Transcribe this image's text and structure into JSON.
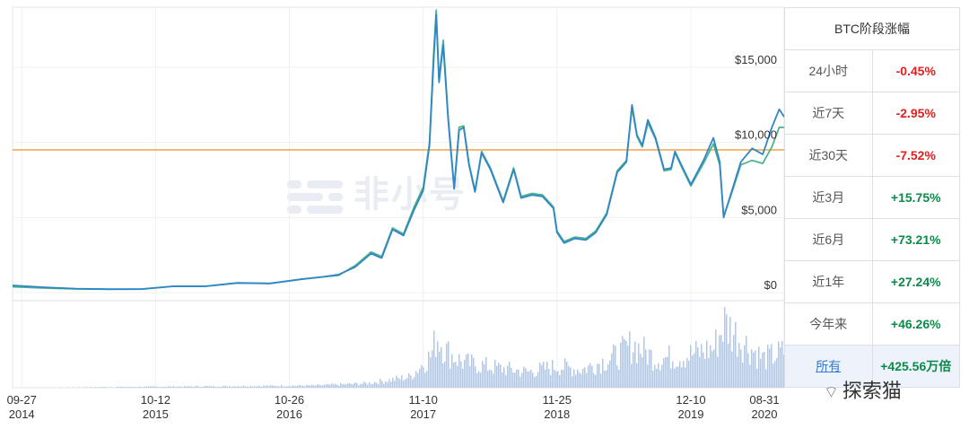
{
  "watermark_logo": "非小号",
  "footer_watermark": "探索猫",
  "chart_data": {
    "type": "line",
    "x_ticks": [
      {
        "date": "2014-09-27",
        "month_day": "09-27",
        "year": "2014"
      },
      {
        "date": "2015-10-12",
        "month_day": "10-12",
        "year": "2015"
      },
      {
        "date": "2016-10-26",
        "month_day": "10-26",
        "year": "2016"
      },
      {
        "date": "2017-11-10",
        "month_day": "11-10",
        "year": "2017"
      },
      {
        "date": "2018-11-25",
        "month_day": "11-25",
        "year": "2018"
      },
      {
        "date": "2019-12-10",
        "month_day": "12-10",
        "year": "2019"
      },
      {
        "date": "2020-08-31",
        "month_day": "08-31",
        "year": "2020"
      }
    ],
    "y_ticks": [
      {
        "value": 0,
        "label": "$0"
      },
      {
        "value": 5000,
        "label": "$5,000"
      },
      {
        "value": 10000,
        "label": "$10,000"
      },
      {
        "value": 15000,
        "label": "$15,000"
      }
    ],
    "ylim": [
      0,
      19000
    ],
    "reference_line": {
      "value": 9500,
      "color": "#f5a04a"
    },
    "series": [
      {
        "color": "#2f86c8",
        "points": [
          [
            "2014-09-01",
            480
          ],
          [
            "2014-12-01",
            350
          ],
          [
            "2015-03-01",
            260
          ],
          [
            "2015-06-01",
            230
          ],
          [
            "2015-09-01",
            235
          ],
          [
            "2015-12-01",
            420
          ],
          [
            "2016-03-01",
            420
          ],
          [
            "2016-06-01",
            640
          ],
          [
            "2016-09-01",
            610
          ],
          [
            "2016-12-01",
            890
          ],
          [
            "2017-02-01",
            1050
          ],
          [
            "2017-03-15",
            1200
          ],
          [
            "2017-05-01",
            1700
          ],
          [
            "2017-06-15",
            2600
          ],
          [
            "2017-07-15",
            2300
          ],
          [
            "2017-08-15",
            4200
          ],
          [
            "2017-09-15",
            3800
          ],
          [
            "2017-10-15",
            5500
          ],
          [
            "2017-11-10",
            6800
          ],
          [
            "2017-11-28",
            9800
          ],
          [
            "2017-12-10",
            15500
          ],
          [
            "2017-12-17",
            18500
          ],
          [
            "2017-12-25",
            14000
          ],
          [
            "2018-01-06",
            16500
          ],
          [
            "2018-01-20",
            11500
          ],
          [
            "2018-02-06",
            6900
          ],
          [
            "2018-02-20",
            10800
          ],
          [
            "2018-03-05",
            11000
          ],
          [
            "2018-03-20",
            8500
          ],
          [
            "2018-04-06",
            6700
          ],
          [
            "2018-04-25",
            9300
          ],
          [
            "2018-05-20",
            8200
          ],
          [
            "2018-06-25",
            6000
          ],
          [
            "2018-07-25",
            8200
          ],
          [
            "2018-08-15",
            6300
          ],
          [
            "2018-09-15",
            6500
          ],
          [
            "2018-10-15",
            6400
          ],
          [
            "2018-11-15",
            5600
          ],
          [
            "2018-11-25",
            4000
          ],
          [
            "2018-12-15",
            3300
          ],
          [
            "2019-01-15",
            3600
          ],
          [
            "2019-02-15",
            3500
          ],
          [
            "2019-03-15",
            4000
          ],
          [
            "2019-04-15",
            5200
          ],
          [
            "2019-05-15",
            8000
          ],
          [
            "2019-06-10",
            8700
          ],
          [
            "2019-06-26",
            12500
          ],
          [
            "2019-07-10",
            10500
          ],
          [
            "2019-07-25",
            9800
          ],
          [
            "2019-08-10",
            11500
          ],
          [
            "2019-09-01",
            10300
          ],
          [
            "2019-09-25",
            8200
          ],
          [
            "2019-10-15",
            8300
          ],
          [
            "2019-10-26",
            9400
          ],
          [
            "2019-11-15",
            8400
          ],
          [
            "2019-12-10",
            7200
          ],
          [
            "2020-01-15",
            8800
          ],
          [
            "2020-02-12",
            10300
          ],
          [
            "2020-03-01",
            8700
          ],
          [
            "2020-03-12",
            5000
          ],
          [
            "2020-04-01",
            6500
          ],
          [
            "2020-04-30",
            8700
          ],
          [
            "2020-06-01",
            9600
          ],
          [
            "2020-07-01",
            9200
          ],
          [
            "2020-07-27",
            11000
          ],
          [
            "2020-08-17",
            12200
          ],
          [
            "2020-08-31",
            11700
          ]
        ]
      },
      {
        "color": "#4fb38a",
        "points": [
          [
            "2014-09-01",
            380
          ],
          [
            "2014-12-01",
            300
          ],
          [
            "2015-03-01",
            240
          ],
          [
            "2015-06-01",
            220
          ],
          [
            "2015-09-01",
            230
          ],
          [
            "2015-12-01",
            420
          ],
          [
            "2016-03-01",
            420
          ],
          [
            "2016-06-01",
            650
          ],
          [
            "2016-09-01",
            610
          ],
          [
            "2016-12-01",
            900
          ],
          [
            "2017-02-01",
            1050
          ],
          [
            "2017-03-15",
            1150
          ],
          [
            "2017-05-01",
            1800
          ],
          [
            "2017-06-15",
            2700
          ],
          [
            "2017-07-15",
            2400
          ],
          [
            "2017-08-15",
            4300
          ],
          [
            "2017-09-15",
            3900
          ],
          [
            "2017-10-15",
            5700
          ],
          [
            "2017-11-10",
            7000
          ],
          [
            "2017-11-28",
            10000
          ],
          [
            "2017-12-10",
            16000
          ],
          [
            "2017-12-17",
            18800
          ],
          [
            "2017-12-25",
            14200
          ],
          [
            "2018-01-06",
            16800
          ],
          [
            "2018-01-20",
            11700
          ],
          [
            "2018-02-06",
            7000
          ],
          [
            "2018-02-20",
            11000
          ],
          [
            "2018-03-05",
            11100
          ],
          [
            "2018-03-20",
            8600
          ],
          [
            "2018-04-06",
            6800
          ],
          [
            "2018-04-25",
            9400
          ],
          [
            "2018-05-20",
            8300
          ],
          [
            "2018-06-25",
            6100
          ],
          [
            "2018-07-25",
            8300
          ],
          [
            "2018-08-15",
            6400
          ],
          [
            "2018-09-15",
            6600
          ],
          [
            "2018-10-15",
            6500
          ],
          [
            "2018-11-15",
            5700
          ],
          [
            "2018-11-25",
            4100
          ],
          [
            "2018-12-15",
            3400
          ],
          [
            "2019-01-15",
            3700
          ],
          [
            "2019-02-15",
            3600
          ],
          [
            "2019-03-15",
            4100
          ],
          [
            "2019-04-15",
            5300
          ],
          [
            "2019-05-15",
            8100
          ],
          [
            "2019-06-10",
            8800
          ],
          [
            "2019-06-26",
            12300
          ],
          [
            "2019-07-10",
            10400
          ],
          [
            "2019-07-25",
            9700
          ],
          [
            "2019-08-10",
            11300
          ],
          [
            "2019-09-01",
            10200
          ],
          [
            "2019-09-25",
            8100
          ],
          [
            "2019-10-15",
            8200
          ],
          [
            "2019-10-26",
            9300
          ],
          [
            "2019-11-15",
            8300
          ],
          [
            "2019-12-10",
            7100
          ],
          [
            "2020-01-15",
            8600
          ],
          [
            "2020-02-12",
            9900
          ],
          [
            "2020-03-01",
            8500
          ],
          [
            "2020-03-12",
            5100
          ],
          [
            "2020-04-01",
            6400
          ],
          [
            "2020-04-30",
            8500
          ],
          [
            "2020-06-01",
            8800
          ],
          [
            "2020-07-01",
            8600
          ],
          [
            "2020-07-27",
            9700
          ],
          [
            "2020-08-17",
            11000
          ],
          [
            "2020-08-31",
            11000
          ]
        ]
      }
    ],
    "volume": {
      "color": "#a9c9f5",
      "points": [
        [
          "2014-09-01",
          0.0
        ],
        [
          "2017-01-01",
          0.03
        ],
        [
          "2017-06-01",
          0.06
        ],
        [
          "2017-10-01",
          0.15
        ],
        [
          "2017-12-01",
          0.45
        ],
        [
          "2017-12-17",
          0.72
        ],
        [
          "2018-01-15",
          0.5
        ],
        [
          "2018-03-01",
          0.35
        ],
        [
          "2018-06-01",
          0.28
        ],
        [
          "2018-09-01",
          0.22
        ],
        [
          "2018-11-25",
          0.3
        ],
        [
          "2019-02-01",
          0.25
        ],
        [
          "2019-05-15",
          0.45
        ],
        [
          "2019-06-26",
          0.6
        ],
        [
          "2019-09-01",
          0.4
        ],
        [
          "2019-12-01",
          0.45
        ],
        [
          "2020-02-12",
          0.55
        ],
        [
          "2020-03-12",
          0.9
        ],
        [
          "2020-05-01",
          0.65
        ],
        [
          "2020-07-01",
          0.4
        ],
        [
          "2020-08-31",
          0.5
        ]
      ]
    }
  },
  "stats_table": {
    "title": "BTC阶段涨幅",
    "rows": [
      {
        "label": "24小时",
        "value": "-0.45%",
        "trend": "neg"
      },
      {
        "label": "近7天",
        "value": "-2.95%",
        "trend": "neg"
      },
      {
        "label": "近30天",
        "value": "-7.52%",
        "trend": "neg"
      },
      {
        "label": "近3月",
        "value": "+15.75%",
        "trend": "pos"
      },
      {
        "label": "近6月",
        "value": "+73.21%",
        "trend": "pos"
      },
      {
        "label": "近1年",
        "value": "+27.24%",
        "trend": "pos"
      },
      {
        "label": "今年来",
        "value": "+46.26%",
        "trend": "pos"
      },
      {
        "label": "所有",
        "value": "+425.56万倍",
        "trend": "pos",
        "active": true
      }
    ]
  }
}
